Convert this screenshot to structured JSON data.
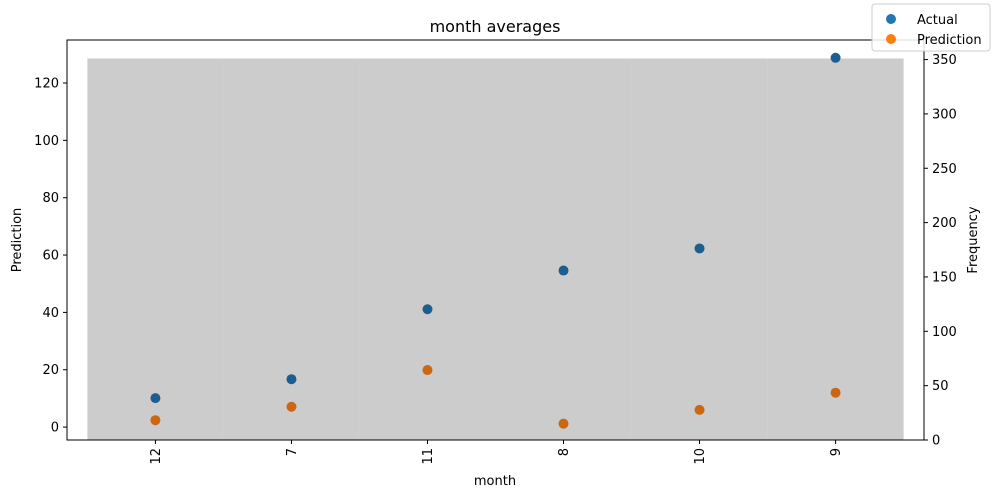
{
  "chart_data": {
    "type": "scatter",
    "title": "month averages",
    "xlabel": "month",
    "ylabel": "Prediction",
    "y2label": "Frequency",
    "categories": [
      "12",
      "7",
      "11",
      "8",
      "10",
      "9"
    ],
    "series": [
      {
        "name": "Actual",
        "color": "#1f77b4",
        "values": [
          10.1,
          16.7,
          41.1,
          54.6,
          62.3,
          128.8
        ]
      },
      {
        "name": "Prediction",
        "color": "#ff7f0e",
        "values": [
          2.4,
          7.1,
          19.9,
          1.2,
          6.0,
          12.0
        ]
      }
    ],
    "frequency": {
      "color": "#cccccc",
      "value": 351
    },
    "ylim": [
      -4.5,
      135
    ],
    "y2lim": [
      0,
      368
    ],
    "yticks": [
      0,
      20,
      40,
      60,
      80,
      100,
      120
    ],
    "y2ticks": [
      0,
      50,
      100,
      150,
      200,
      250,
      300,
      350
    ],
    "legend": "top-right",
    "grid": false
  }
}
